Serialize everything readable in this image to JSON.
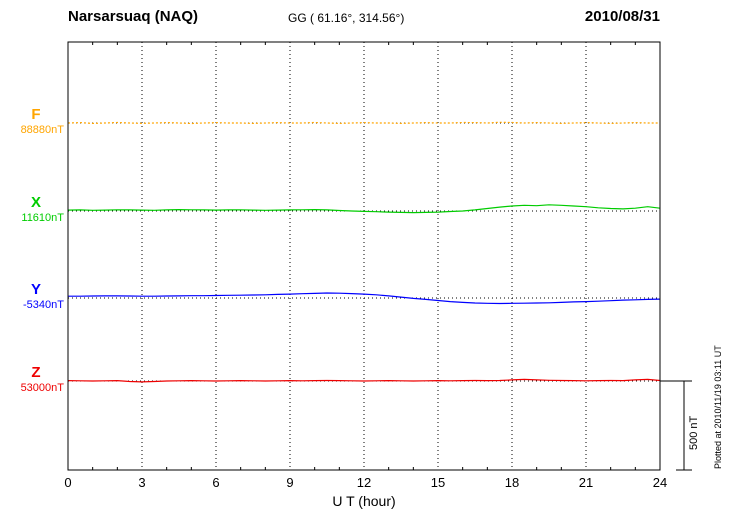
{
  "header": {
    "station": "Narsarsuaq (NAQ)",
    "coordinates": "GG ( 61.16°, 314.56°)",
    "date": "2010/08/31"
  },
  "axis": {
    "xlabel": "U T (hour)"
  },
  "scalebar": {
    "label": "500 nT"
  },
  "side_note": "Plotted at 2010/11/19 03:11 UT",
  "chart_data": {
    "type": "line",
    "title": "Narsarsuaq (NAQ) magnetogram 2010/08/31",
    "xlabel": "U T (hour)",
    "x_range": [
      0,
      24
    ],
    "x_step_hours": 0.5,
    "x_ticks": [
      0,
      3,
      6,
      9,
      12,
      15,
      18,
      21,
      24
    ],
    "grid": "dotted vertical lines at 3-hour ticks; dotted horizontal baseline for each trace",
    "legend_position": "left margin",
    "scale_bar_nT": 500,
    "series": [
      {
        "name": "F",
        "baseline_label": "88880nT",
        "baseline_nT": 88880,
        "color": "#ffa500",
        "line_style": "dotted",
        "offsets_nT": [
          0,
          2,
          -2,
          0,
          3,
          0,
          -2,
          0,
          2,
          0,
          -3,
          0,
          2,
          0,
          0,
          -2,
          0,
          2,
          0,
          0,
          3,
          0,
          -2,
          0,
          2,
          0,
          0,
          -2,
          0,
          2,
          0,
          0,
          3,
          2,
          0,
          4,
          3,
          0,
          2,
          0,
          -2,
          0,
          2,
          0,
          -2,
          0,
          2,
          0,
          0
        ]
      },
      {
        "name": "X",
        "baseline_label": "11610nT",
        "baseline_nT": 11610,
        "color": "#00cc00",
        "line_style": "solid",
        "offsets_nT": [
          5,
          6,
          4,
          5,
          7,
          6,
          5,
          4,
          6,
          8,
          7,
          6,
          5,
          6,
          7,
          5,
          4,
          5,
          6,
          7,
          8,
          6,
          3,
          0,
          -2,
          -4,
          -6,
          -8,
          -9,
          -8,
          -6,
          -3,
          0,
          6,
          14,
          22,
          28,
          32,
          30,
          35,
          32,
          28,
          24,
          18,
          14,
          12,
          16,
          24,
          16
        ]
      },
      {
        "name": "Y",
        "baseline_label": "-5340nT",
        "baseline_nT": -5340,
        "color": "#0000ff",
        "line_style": "solid",
        "offsets_nT": [
          10,
          10,
          11,
          12,
          12,
          11,
          10,
          10,
          11,
          12,
          13,
          13,
          14,
          15,
          16,
          17,
          18,
          20,
          22,
          24,
          26,
          28,
          27,
          25,
          22,
          18,
          12,
          5,
          -2,
          -8,
          -14,
          -20,
          -25,
          -28,
          -30,
          -31,
          -30,
          -29,
          -28,
          -27,
          -25,
          -22,
          -20,
          -18,
          -15,
          -12,
          -10,
          -8,
          -6
        ]
      },
      {
        "name": "Z",
        "baseline_label": "53000nT",
        "baseline_nT": 53000,
        "color": "#ee0000",
        "line_style": "solid",
        "offsets_nT": [
          2,
          1,
          0,
          1,
          2,
          -3,
          -5,
          -3,
          0,
          1,
          2,
          1,
          0,
          1,
          2,
          1,
          0,
          1,
          2,
          1,
          2,
          3,
          2,
          1,
          0,
          1,
          2,
          1,
          0,
          1,
          2,
          1,
          2,
          3,
          2,
          3,
          6,
          9,
          6,
          4,
          3,
          2,
          1,
          2,
          3,
          2,
          6,
          9,
          3
        ]
      }
    ]
  }
}
